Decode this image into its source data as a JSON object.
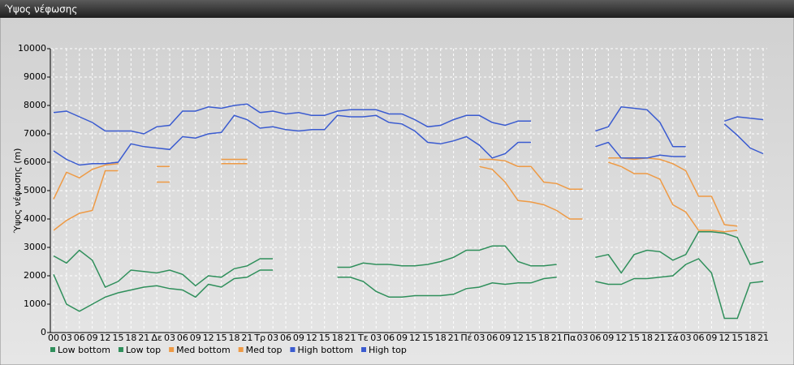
{
  "chart_data": {
    "type": "line",
    "title": "Ύψος νέφωσης",
    "y_label": "Ύψος νέφωσης (m)",
    "categories": [
      "00",
      "03",
      "06",
      "09",
      "12",
      "15",
      "18",
      "21",
      "Δε",
      "03",
      "06",
      "09",
      "12",
      "15",
      "18",
      "21",
      "Τρ",
      "03",
      "06",
      "09",
      "12",
      "15",
      "18",
      "21",
      "Τε",
      "03",
      "06",
      "09",
      "12",
      "15",
      "18",
      "21",
      "Πέ",
      "03",
      "06",
      "09",
      "12",
      "15",
      "18",
      "21",
      "Πα",
      "03",
      "06",
      "09",
      "12",
      "15",
      "18",
      "21",
      "Σά",
      "03",
      "06",
      "09",
      "12",
      "15",
      "18",
      "21"
    ],
    "ylim": [
      0,
      10000
    ],
    "yticks": [
      0,
      1000,
      2000,
      3000,
      4000,
      5000,
      6000,
      7000,
      8000,
      9000,
      10000
    ],
    "grid": true,
    "series": [
      {
        "name": "Low bottom",
        "color": "#2f8f5b",
        "values": [
          2050,
          1000,
          750,
          1000,
          1250,
          1400,
          1500,
          1600,
          1650,
          1550,
          1500,
          1250,
          1700,
          1600,
          1900,
          1950,
          2200,
          2200,
          null,
          null,
          null,
          null,
          1950,
          1950,
          1800,
          1450,
          1250,
          1250,
          1300,
          1300,
          1300,
          1350,
          1550,
          1600,
          1750,
          1700,
          1750,
          1750,
          1900,
          1950,
          null,
          null,
          1800,
          1700,
          1700,
          1900,
          1900,
          1950,
          2000,
          2400,
          2600,
          2100,
          500,
          500,
          1750,
          1800
        ]
      },
      {
        "name": "Low top",
        "color": "#2f8f5b",
        "values": [
          2700,
          2450,
          2900,
          2550,
          1600,
          1800,
          2200,
          2150,
          2100,
          2200,
          2050,
          1650,
          2000,
          1950,
          2250,
          2350,
          2600,
          2600,
          null,
          null,
          null,
          null,
          2300,
          2300,
          2450,
          2400,
          2400,
          2350,
          2350,
          2400,
          2500,
          2650,
          2900,
          2900,
          3050,
          3050,
          2500,
          2350,
          2350,
          2400,
          null,
          null,
          2650,
          2750,
          2100,
          2750,
          2900,
          2850,
          2550,
          2750,
          3550,
          3550,
          3500,
          3350,
          2400,
          2500
        ]
      },
      {
        "name": "Med bottom",
        "color": "#ee9a45",
        "values": [
          3600,
          3950,
          4200,
          4300,
          5700,
          5700,
          null,
          null,
          5300,
          5300,
          null,
          null,
          null,
          5950,
          5950,
          5950,
          null,
          null,
          null,
          null,
          null,
          null,
          null,
          null,
          null,
          null,
          null,
          null,
          null,
          null,
          null,
          null,
          null,
          5850,
          5750,
          5300,
          4650,
          4600,
          4500,
          4300,
          4000,
          4000,
          null,
          6000,
          5850,
          5600,
          5600,
          5400,
          4500,
          4250,
          3600,
          3600,
          3550,
          3600,
          null,
          null
        ]
      },
      {
        "name": "Med top",
        "color": "#ee9a45",
        "values": [
          4700,
          5650,
          5450,
          5750,
          5900,
          5950,
          null,
          null,
          5850,
          5850,
          null,
          null,
          null,
          6100,
          6100,
          6100,
          null,
          null,
          null,
          null,
          null,
          null,
          null,
          null,
          null,
          null,
          null,
          null,
          null,
          null,
          null,
          null,
          null,
          6100,
          6100,
          6050,
          5850,
          5850,
          5300,
          5250,
          5050,
          5050,
          null,
          6150,
          6150,
          6100,
          6150,
          6100,
          5950,
          5700,
          4800,
          4800,
          3800,
          3750,
          null,
          null
        ]
      },
      {
        "name": "High bottom",
        "color": "#3a5bd0",
        "values": [
          6400,
          6100,
          5900,
          5950,
          5950,
          6000,
          6650,
          6550,
          6500,
          6450,
          6900,
          6850,
          7000,
          7050,
          7650,
          7500,
          7200,
          7250,
          7150,
          7100,
          7150,
          7150,
          7650,
          7600,
          7600,
          7650,
          7400,
          7350,
          7100,
          6700,
          6650,
          6750,
          6900,
          6600,
          6150,
          6300,
          6700,
          6700,
          null,
          null,
          null,
          null,
          6550,
          6700,
          6150,
          6150,
          6150,
          6250,
          6200,
          6200,
          null,
          null,
          7350,
          6950,
          6500,
          6300
        ]
      },
      {
        "name": "High top",
        "color": "#3a5bd0",
        "values": [
          7750,
          7800,
          7600,
          7400,
          7100,
          7100,
          7100,
          7000,
          7250,
          7300,
          7800,
          7800,
          7950,
          7900,
          8000,
          8050,
          7750,
          7800,
          7700,
          7750,
          7650,
          7650,
          7800,
          7850,
          7850,
          7850,
          7700,
          7700,
          7500,
          7250,
          7300,
          7500,
          7650,
          7650,
          7400,
          7300,
          7450,
          7450,
          null,
          null,
          null,
          null,
          7100,
          7250,
          7950,
          7900,
          7850,
          7400,
          6550,
          6550,
          null,
          null,
          7450,
          7600,
          7550,
          7500
        ]
      }
    ]
  }
}
